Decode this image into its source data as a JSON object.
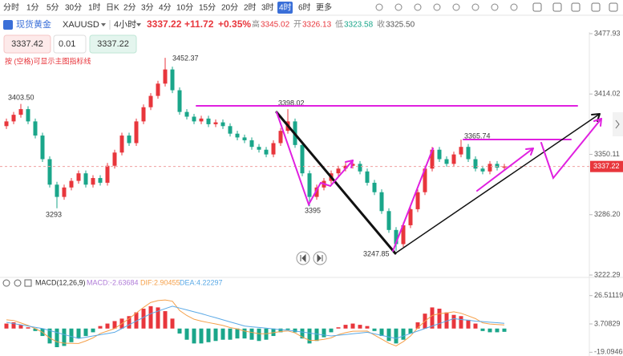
{
  "toolbar": {
    "timeframes": [
      "分时",
      "1分",
      "5分",
      "30分",
      "1时",
      "日K",
      "2分",
      "3分",
      "4分",
      "10分",
      "15分",
      "20分",
      "2时",
      "3时",
      "4时",
      "6时",
      "更多"
    ],
    "active": 14
  },
  "header": {
    "symbol": "现货黄金",
    "ticker": "XAUUSD",
    "period": "4小时",
    "price": "3337.22",
    "change": "+11.72",
    "change_pct": "+0.35%",
    "high_label": "高",
    "high": "3345.02",
    "open_label": "开",
    "open": "3326.13",
    "low_label": "低",
    "low": "3323.58",
    "close_label": "收",
    "close": "3325.50"
  },
  "order": {
    "sell": "3337.42",
    "lots": "0.01",
    "buy": "3337.22"
  },
  "hint": "按 (空格)可显示主图指标线",
  "chart_data": [
    {
      "type": "candlestick",
      "up_color": "#e8363c",
      "down_color": "#1aa68a",
      "open": [
        3380,
        3385,
        3392,
        3398,
        3385,
        3370,
        3345,
        3318,
        3305,
        3315,
        3322,
        3330,
        3318,
        3325,
        3320,
        3338,
        3352,
        3370,
        3362,
        3385,
        3400,
        3412,
        3425,
        3440,
        3418,
        3395,
        3390,
        3385,
        3388,
        3382,
        3384,
        3380,
        3372,
        3368,
        3365,
        3358,
        3355,
        3350,
        3362,
        3375,
        3385,
        3360,
        3330,
        3305,
        3315,
        3322,
        3330,
        3335,
        3338,
        3340,
        3332,
        3320,
        3310,
        3290,
        3270,
        3255,
        3275,
        3292,
        3310,
        3335,
        3355,
        3345,
        3340,
        3350,
        3358,
        3345,
        3335,
        3332,
        3340,
        3336
      ],
      "high": [
        3388,
        3395,
        3403.5,
        3401,
        3388,
        3373,
        3348,
        3321,
        3318,
        3325,
        3333,
        3333,
        3328,
        3328,
        3341,
        3355,
        3373,
        3373,
        3388,
        3403,
        3415,
        3428,
        3452.37,
        3443,
        3421,
        3398,
        3393,
        3391,
        3391,
        3387,
        3387,
        3383,
        3375,
        3371,
        3368,
        3361,
        3358,
        3365,
        3378,
        3398.02,
        3388,
        3363,
        3333,
        3318,
        3325,
        3333,
        3338,
        3341,
        3343,
        3343,
        3335,
        3323,
        3313,
        3293,
        3273,
        3278,
        3295,
        3313,
        3338,
        3358,
        3358,
        3348,
        3353,
        3365.74,
        3361,
        3348,
        3338,
        3343,
        3343,
        3340
      ],
      "low": [
        3377,
        3382,
        3389,
        3382,
        3367,
        3342,
        3315,
        3293,
        3302,
        3312,
        3319,
        3315,
        3315,
        3317,
        3317,
        3335,
        3349,
        3359,
        3359,
        3382,
        3397,
        3409,
        3422,
        3415,
        3392,
        3387,
        3382,
        3382,
        3379,
        3379,
        3377,
        3369,
        3365,
        3362,
        3355,
        3352,
        3347,
        3347,
        3359,
        3372,
        3357,
        3327,
        3295,
        3302,
        3312,
        3319,
        3327,
        3332,
        3335,
        3329,
        3317,
        3307,
        3287,
        3267,
        3247.85,
        3252,
        3272,
        3289,
        3307,
        3332,
        3342,
        3337,
        3337,
        3347,
        3342,
        3332,
        3329,
        3329,
        3333,
        3333
      ],
      "close": [
        3385,
        3392,
        3398,
        3385,
        3370,
        3345,
        3318,
        3305,
        3315,
        3322,
        3330,
        3318,
        3325,
        3320,
        3338,
        3352,
        3370,
        3362,
        3385,
        3400,
        3412,
        3425,
        3440,
        3418,
        3395,
        3390,
        3385,
        3388,
        3382,
        3384,
        3380,
        3372,
        3368,
        3365,
        3358,
        3355,
        3350,
        3362,
        3375,
        3385,
        3360,
        3330,
        3305,
        3315,
        3322,
        3330,
        3335,
        3338,
        3340,
        3332,
        3320,
        3310,
        3290,
        3270,
        3255,
        3275,
        3292,
        3310,
        3335,
        3355,
        3345,
        3340,
        3350,
        3358,
        3345,
        3335,
        3332,
        3340,
        3336,
        3337.22
      ],
      "current_price": 3337.22,
      "ylim": [
        3222.29,
        3479.6
      ],
      "yticks": [
        3477.93,
        3414.02,
        3350.11,
        {
          "value": 3286.2,
          "label": "3286.20"
        },
        3222.29
      ],
      "annotations": [
        "3403.50",
        "3293",
        "3452.37",
        "3398.02",
        "3395",
        "3247.85",
        "3365.74"
      ]
    },
    {
      "type": "macd",
      "title": "MACD(12,26,9)",
      "ylim": [
        -22.1,
        33.4
      ],
      "yticks": [
        26.51119,
        3.70829,
        {
          "value": -19.0946,
          "label": "-19.09460"
        }
      ],
      "series": [
        {
          "name": "MACD:-2.63684",
          "color": "#b07cd8",
          "pos_color": "#e8363c",
          "neg_color": "#1aa68a",
          "values": [
            4,
            5,
            3,
            1,
            -2,
            -6,
            -12,
            -15,
            -14,
            -11,
            -8,
            -6,
            -3,
            2,
            4,
            6,
            8,
            10,
            13,
            16,
            18,
            17,
            14,
            8,
            -4,
            -9,
            -12,
            -12,
            -11,
            -10,
            -9,
            -9,
            -8,
            -8,
            -9,
            -10,
            -9,
            -6,
            -3,
            -1,
            -3,
            -8,
            -12,
            -10,
            -7,
            -3,
            1,
            3,
            4,
            3,
            2,
            -2,
            -6,
            -10,
            -12,
            -9,
            -4,
            5,
            12,
            17,
            16,
            13,
            11,
            10,
            7,
            4,
            -2,
            -3,
            -3,
            -2.63684
          ]
        },
        {
          "name": "DIF:2.90455",
          "color": "#f5a04a",
          "values": [
            7,
            6.5,
            4.5,
            2.5,
            0,
            -3,
            -7.6,
            -10.7,
            -11.8,
            -11.9,
            -12,
            -10,
            -7.5,
            -4,
            -2,
            0,
            4,
            8,
            12.5,
            17,
            21,
            22.5,
            23,
            22,
            14.5,
            10.5,
            7.5,
            6,
            4.8,
            3.7,
            2.5,
            0.8,
            -0.3,
            -2,
            -3.1,
            -4.1,
            -4.2,
            -3.3,
            -2.4,
            -1.9,
            -3.5,
            -6.8,
            -9.6,
            -9.4,
            -8.7,
            -7.5,
            -4.9,
            -3.3,
            -2.2,
            -2.1,
            -2,
            -5.3,
            -8.5,
            -11.8,
            -14,
            -10.5,
            -6,
            0.5,
            6,
            10.5,
            12,
            12.5,
            13.5,
            12.3,
            10.2,
            8,
            4.6,
            3.6,
            3.2,
            2.90455
          ]
        },
        {
          "name": "DEA:4.22297",
          "color": "#5aa9e6",
          "values": [
            5,
            4,
            3,
            2,
            1,
            0,
            -1.6,
            -3.2,
            -4.8,
            -6.4,
            -8,
            -7,
            -6,
            -5,
            -4,
            -3,
            0,
            3,
            6,
            9,
            12,
            14,
            16,
            18,
            16.5,
            15,
            13.5,
            12,
            10.3,
            8.7,
            7,
            5.3,
            3.7,
            2,
            1.4,
            0.9,
            0.3,
            -0.3,
            -0.9,
            -1.4,
            -2,
            -2.8,
            -3.6,
            -4.4,
            -5.2,
            -6,
            -5.4,
            -4.8,
            -4.2,
            -3.6,
            -3,
            -4.3,
            -5.5,
            -6.8,
            -8,
            -6,
            -4,
            -2,
            0,
            2,
            4,
            6,
            8,
            7.3,
            6.7,
            6,
            5.6,
            5.1,
            4.7,
            4.22297
          ]
        }
      ]
    }
  ]
}
